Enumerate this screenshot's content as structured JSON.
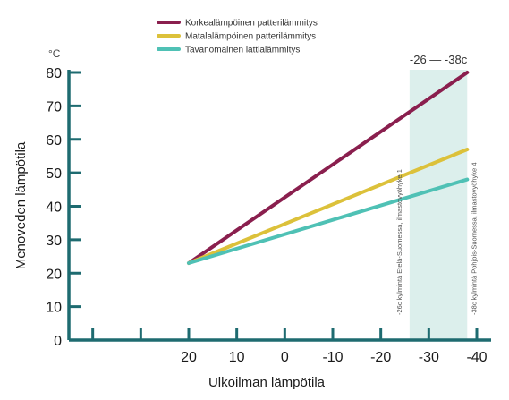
{
  "chart_data": {
    "type": "line",
    "title": "",
    "unit_label": "°C",
    "xlabel": "Ulkoilman lämpötila",
    "ylabel": "Menoveden lämpötila",
    "x_ticks": [
      20,
      10,
      0,
      -10,
      -20,
      -30,
      -40
    ],
    "x_tick_labels": [
      "20",
      "10",
      "0",
      "-10",
      "-20",
      "-30",
      "-40"
    ],
    "y_ticks": [
      0,
      10,
      20,
      30,
      40,
      50,
      60,
      70,
      80
    ],
    "y_tick_labels": [
      "0",
      "10",
      "20",
      "30",
      "40",
      "50",
      "60",
      "70",
      "80"
    ],
    "xlim": [
      20,
      -40
    ],
    "ylim": [
      0,
      80
    ],
    "grid": false,
    "legend_position": "top-center",
    "series": [
      {
        "name": "Korkealämpöinen patterilämmitys",
        "color": "#8a1f4e",
        "x": [
          20,
          -38
        ],
        "y": [
          23,
          80
        ]
      },
      {
        "name": "Matalalämpöinen patterilämmitys",
        "color": "#dcc13a",
        "x": [
          20,
          -38
        ],
        "y": [
          23,
          57
        ]
      },
      {
        "name": "Tavanomainen lattialämmitys",
        "color": "#4fc1b5",
        "x": [
          20,
          -38
        ],
        "y": [
          23,
          48
        ]
      }
    ],
    "highlight_band": {
      "x_from": -26,
      "x_to": -38,
      "color": "#dcefec",
      "label": "-26 — -38c"
    },
    "annotations": [
      {
        "x": -26,
        "text": "-26c kylmintä Etelä-Suomessa, ilmastovyöhyke 1"
      },
      {
        "x": -38,
        "text": "-38c kylmintä Pohjois-Suomessa, ilmastovyöhyke 4"
      }
    ],
    "axis_color": "#1e6b70"
  }
}
